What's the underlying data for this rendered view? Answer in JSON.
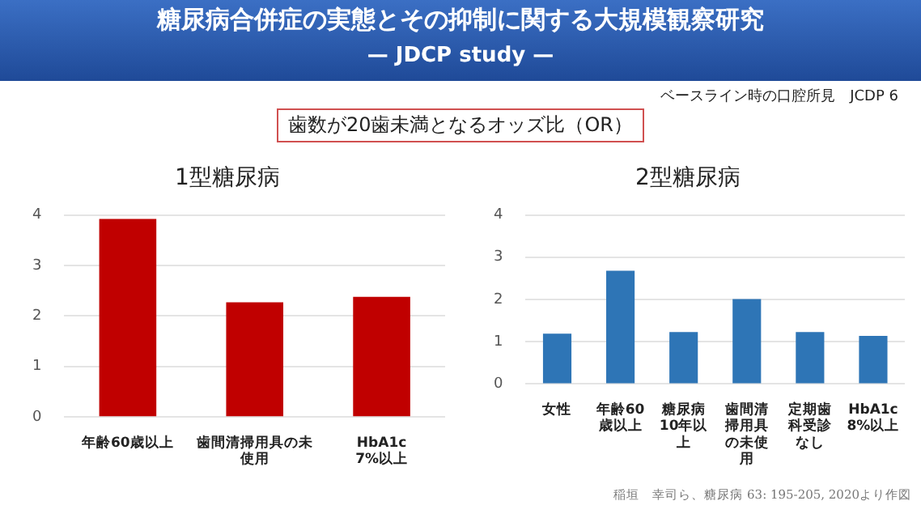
{
  "chart_data": [
    {
      "type": "bar",
      "title": "1型糖尿病",
      "categories": [
        "年齢60歳以上",
        "歯間清掃用具の未使用",
        "HbA1c 7%以上"
      ],
      "values": [
        3.92,
        2.27,
        2.38
      ],
      "color": "#c00000",
      "ylim": [
        0,
        4
      ],
      "yticks": [
        0,
        1,
        2,
        3,
        4
      ],
      "grid": "y",
      "annotations": [
        "糖尿病合併症の実態とその抑制に関する大規模観察研究",
        "— JDCP study —",
        "ベースライン時の口腔所見　JCDP 6",
        "歯数が20歯未満となるオッズ比（OR）"
      ]
    },
    {
      "type": "bar",
      "title": "2型糖尿病",
      "categories": [
        "女性",
        "年齢60歳以上",
        "糖尿病10年以上",
        "歯間清掃用具の未使用",
        "定期歯科受診なし",
        "HbA1c 8%以上"
      ],
      "values": [
        1.19,
        2.68,
        1.23,
        2.01,
        1.23,
        1.14
      ],
      "color": "#2e75b6",
      "ylim": [
        0,
        4
      ],
      "yticks": [
        0,
        1,
        2,
        3,
        4
      ],
      "grid": "y",
      "annotations": [
        "稲垣　幸司ら、糖尿病 63: 195-205, 2020より作図"
      ]
    }
  ]
}
